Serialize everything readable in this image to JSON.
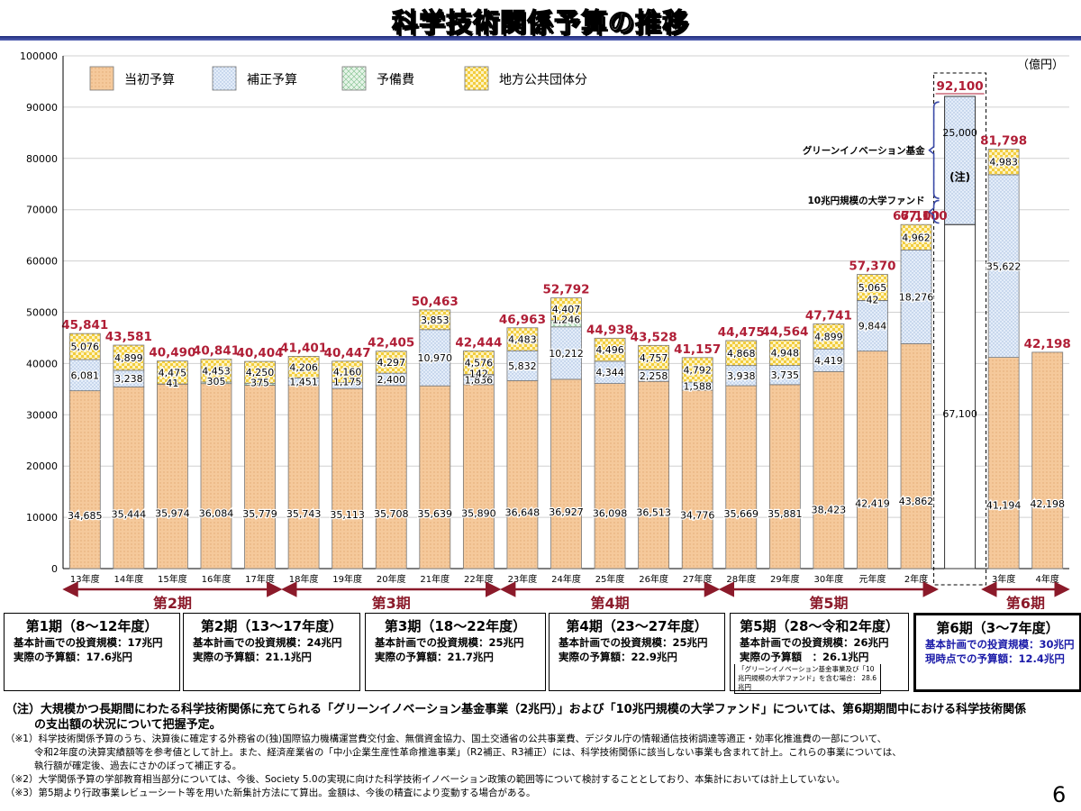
{
  "title": "科学技術関係予算の推移",
  "chart_data": {
    "type": "bar",
    "stacked": true,
    "unit_label": "（億円）",
    "ylim": [
      0,
      100000
    ],
    "yticks": [
      "0",
      "10000",
      "20000",
      "30000",
      "40000",
      "50000",
      "60000",
      "70000",
      "80000",
      "90000",
      "100000"
    ],
    "grid": true,
    "legend_position": "top-left",
    "categories": [
      "13年度",
      "14年度",
      "15年度",
      "16年度",
      "17年度",
      "18年度",
      "19年度",
      "20年度",
      "21年度",
      "22年度",
      "23年度",
      "24年度",
      "25年度",
      "26年度",
      "27年度",
      "28年度",
      "29年度",
      "30年度",
      "元年度",
      "2年度",
      "",
      "3年度",
      "4年度"
    ],
    "series": [
      {
        "name": "当初予算",
        "color": "#f5c99b",
        "values": [
          34685,
          35444,
          35974,
          36084,
          35779,
          35743,
          35113,
          35708,
          35639,
          35890,
          36648,
          36927,
          36098,
          36513,
          34776,
          35669,
          35881,
          38423,
          42419,
          43862,
          null,
          41194,
          42198
        ],
        "labels": [
          "34,685",
          "35,444",
          "35,974",
          "36,084",
          "35,779",
          "35,743",
          "35,113",
          "35,708",
          "35,639",
          "35,890",
          "36,648",
          "36,927",
          "36,098",
          "36,513",
          "34,776",
          "35,669",
          "35,881",
          "38,423",
          "42,419",
          "43,862",
          "",
          "41,194",
          "42,198"
        ]
      },
      {
        "name": "補正予算",
        "color": "#dbe7f7",
        "values": [
          6081,
          3238,
          0,
          0,
          0,
          1451,
          1175,
          2400,
          10970,
          1836,
          5832,
          10212,
          4344,
          2258,
          1588,
          3938,
          3735,
          4419,
          9844,
          18276,
          null,
          35622,
          0
        ],
        "labels": [
          "6,081",
          "3,238",
          "",
          "",
          "",
          "1,451",
          "1,175",
          "2,400",
          "10,970",
          "1,836",
          "5,832",
          "10,212",
          "4,344",
          "2,258",
          "1,588",
          "3,938",
          "3,735",
          "4,419",
          "9,844",
          "18,276",
          "",
          "35,622",
          ""
        ]
      },
      {
        "name": "予備費",
        "color": "#d9f0dc",
        "values": [
          0,
          0,
          41,
          305,
          375,
          0,
          0,
          0,
          0,
          142,
          0,
          1246,
          0,
          0,
          0,
          0,
          0,
          0,
          42,
          0,
          null,
          0,
          0
        ],
        "labels": [
          "",
          "",
          "41",
          "305",
          "375",
          "",
          "",
          "",
          "",
          "142",
          "",
          "1,246",
          "",
          "",
          "",
          "",
          "",
          "",
          "42",
          "",
          "",
          "",
          ""
        ]
      },
      {
        "name": "地方公共団体分",
        "color": "#fde88e",
        "values": [
          5076,
          4899,
          4475,
          4453,
          4250,
          4206,
          4160,
          4297,
          3853,
          4576,
          4483,
          4407,
          4496,
          4757,
          4792,
          4868,
          4948,
          4899,
          5065,
          4962,
          null,
          4983,
          0
        ],
        "labels": [
          "5,076",
          "4,899",
          "4,475",
          "4,453",
          "4,250",
          "4,206",
          "4,160",
          "4,297",
          "3,853",
          "4,576",
          "4,483",
          "4,407",
          "4,496",
          "4,757",
          "4,792",
          "4,868",
          "4,948",
          "4,899",
          "5,065",
          "4,962",
          "",
          "4,983",
          ""
        ]
      }
    ],
    "totals": [
      45841,
      43581,
      40490,
      40841,
      40404,
      41401,
      40447,
      42405,
      50463,
      42444,
      46963,
      52792,
      44938,
      43528,
      41157,
      44475,
      44564,
      47741,
      57370,
      67100,
      null,
      81798,
      42198
    ],
    "total_labels": [
      "45,841",
      "43,581",
      "40,490",
      "40,841",
      "40,404",
      "41,401",
      "40,447",
      "42,405",
      "50,463",
      "42,444",
      "46,963",
      "52,792",
      "44,938",
      "43,528",
      "41,157",
      "44,475",
      "44,564",
      "47,741",
      "57,370",
      "67,100",
      "",
      "81,798",
      "42,198"
    ],
    "special_bar": {
      "index": 20,
      "lower_value": 67100,
      "lower_label": "67,100",
      "upper_value": 25000,
      "upper_label": "25,000",
      "total_value": 92100,
      "total_label": "92,100",
      "lower_total_label": "67,100",
      "note_mark": "(注)",
      "annotation_upper": "グリーンイノベーション基金",
      "annotation_lower": "10兆円規模の大学ファンド"
    },
    "periods": [
      {
        "label": "第2期",
        "from": 0,
        "to": 4
      },
      {
        "label": "第3期",
        "from": 5,
        "to": 9
      },
      {
        "label": "第4期",
        "from": 10,
        "to": 14
      },
      {
        "label": "第5期",
        "from": 15,
        "to": 19
      },
      {
        "label": "第6期",
        "from": 21,
        "to": 22
      }
    ]
  },
  "period_boxes": [
    {
      "title": "第1期（8～12年度）",
      "lines": [
        "基本計画での投資規模：17兆円",
        "実際の予算額：17.6兆円"
      ],
      "note": ""
    },
    {
      "title": "第2期（13～17年度）",
      "lines": [
        "基本計画での投資規模：24兆円",
        "実際の予算額：21.1兆円"
      ],
      "note": ""
    },
    {
      "title": "第3期（18～22年度）",
      "lines": [
        "基本計画での投資規模：25兆円",
        "実際の予算額：21.7兆円"
      ],
      "note": ""
    },
    {
      "title": "第4期（23～27年度）",
      "lines": [
        "基本計画での投資規模：25兆円",
        "実際の予算額：22.9兆円"
      ],
      "note": ""
    },
    {
      "title": "第5期（28～令和2年度）",
      "lines": [
        "基本計画での投資規模：26兆円",
        "実際の予算額　：26.1兆円"
      ],
      "note": "「グリーンイノベーション基金事業及び「10兆円規模の大学ファンド」を含む場合： 28.6兆円"
    },
    {
      "title": "第6期（3～7年度）",
      "lines": [
        "基本計画での投資規模：30兆円",
        "現時点での予算額：12.4兆円"
      ],
      "note": ""
    }
  ],
  "notes": {
    "main": "（注）大規模かつ長期間にわたる科学技術関係に充てられる「グリーンイノベーション基金事業（2兆円）」および「10兆円規模の大学ファンド」については、第6期期間中における科学技術関係",
    "main_cont": "の支出額の状況について把握予定。",
    "n1": "（※1）科学技術関係予算のうち、決算後に確定する外務省の(独)国際協力機構運営費交付金、無償資金協力、国土交通省の公共事業費、デジタル庁の情報通信技術調達等適正・効率化推進費の一部について、",
    "n1_cont1": "令和2年度の決算実績額等を参考値として計上。また、経済産業省の「中小企業生産性革命推進事業」（R2補正、R3補正）には、科学技術関係に該当しない事業も含まれて計上。これらの事業については、",
    "n1_cont2": "執行額が確定後、過去にさかのぼって補正する。",
    "n2": "（※2）大学関係予算の学部教育相当部分については、今後、Society 5.0の実現に向けた科学技術イノベーション政策の範囲等について検討することとしており、本集計においては計上していない。",
    "n3": "（※3）第5期より行政事業レビューシート等を用いた新集計方法にて算出。金額は、今後の精査により変動する場合がある。"
  },
  "page_number": "6"
}
